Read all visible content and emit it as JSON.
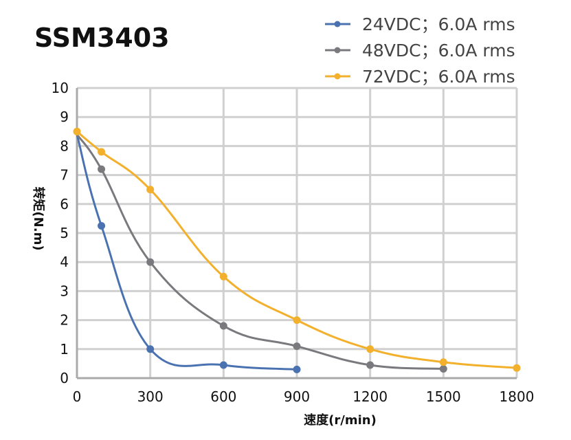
{
  "chart_data": {
    "type": "line",
    "title": "SSM3403",
    "xlabel": "速度(r/min)",
    "ylabel": "转矩(N.m)",
    "xlim": [
      0,
      1800
    ],
    "ylim": [
      0,
      10
    ],
    "xticks": [
      0,
      300,
      600,
      900,
      1200,
      1500,
      1800
    ],
    "yticks": [
      0,
      1,
      2,
      3,
      4,
      5,
      6,
      7,
      8,
      9,
      10
    ],
    "grid": true,
    "legend_position": "top-right",
    "series": [
      {
        "name": "24VDC；6.0A rms",
        "color": "#4a72b0",
        "points": [
          [
            0,
            8.4
          ],
          [
            100,
            5.25
          ],
          [
            300,
            1.0
          ],
          [
            600,
            0.45
          ],
          [
            900,
            0.3
          ]
        ]
      },
      {
        "name": "48VDC；6.0A rms",
        "color": "#7a7a7e",
        "points": [
          [
            0,
            8.4
          ],
          [
            100,
            7.2
          ],
          [
            300,
            4.0
          ],
          [
            600,
            1.8
          ],
          [
            900,
            1.1
          ],
          [
            1200,
            0.45
          ],
          [
            1500,
            0.32
          ]
        ]
      },
      {
        "name": "72VDC；6.0A rms",
        "color": "#f3b02c",
        "points": [
          [
            0,
            8.5
          ],
          [
            100,
            7.8
          ],
          [
            300,
            6.5
          ],
          [
            600,
            3.5
          ],
          [
            900,
            2.0
          ],
          [
            1200,
            1.0
          ],
          [
            1500,
            0.55
          ],
          [
            1800,
            0.35
          ]
        ]
      }
    ]
  }
}
